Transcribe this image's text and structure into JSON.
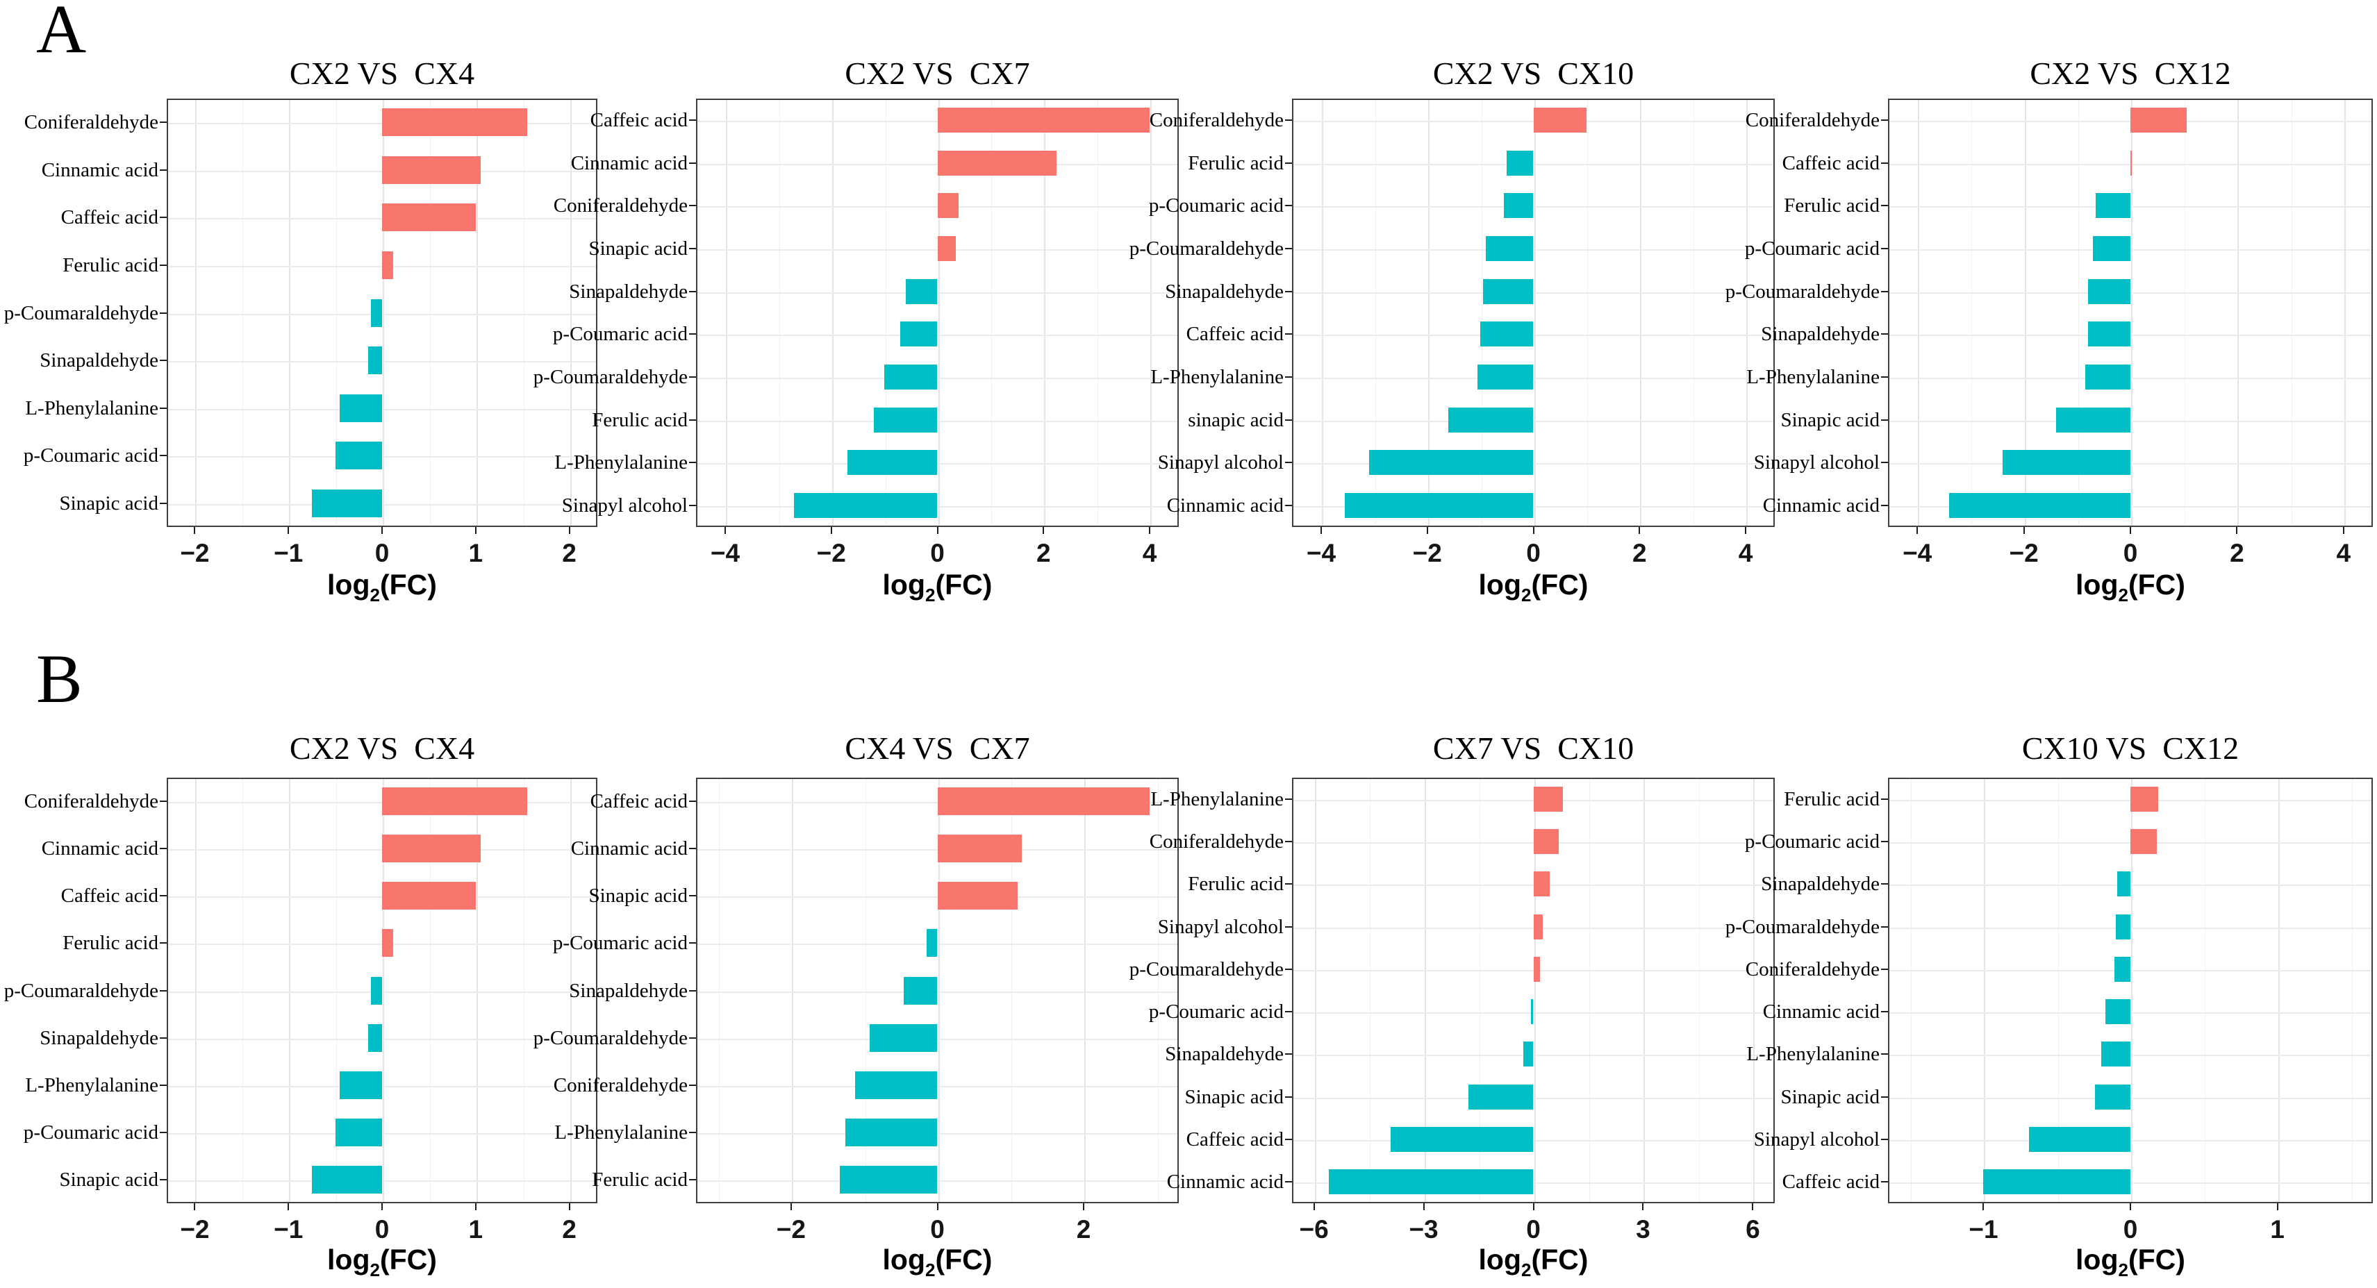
{
  "figure": {
    "xlabel": {
      "base": "log",
      "sub": "2",
      "rest": "(FC)"
    }
  },
  "colors": {
    "up": "#F8766D",
    "down": "#00BFC4"
  },
  "sections": [
    {
      "label": "A",
      "chart_indices": [
        0,
        1,
        2,
        3
      ]
    },
    {
      "label": "B",
      "chart_indices": [
        4,
        5,
        6,
        7
      ]
    }
  ],
  "chart_data": [
    {
      "type": "bar",
      "title": "CX2 VS  CX4",
      "xlabel": "log2(FC)",
      "xlim": [
        -2.3,
        2.3
      ],
      "ticks": [
        -2,
        -1,
        0,
        1,
        2
      ],
      "tick_labels": [
        "−2",
        "−1",
        "0",
        "1",
        "2"
      ],
      "grid": true,
      "bars": [
        {
          "label": "Coniferaldehyde",
          "value": 1.55
        },
        {
          "label": "Cinnamic acid",
          "value": 1.05
        },
        {
          "label": "Caffeic acid",
          "value": 1.0
        },
        {
          "label": "Ferulic acid",
          "value": 0.12
        },
        {
          "label": "p-Coumaraldehyde",
          "value": -0.12
        },
        {
          "label": "Sinapaldehyde",
          "value": -0.15
        },
        {
          "label": "L-Phenylalanine",
          "value": -0.45
        },
        {
          "label": "p-Coumaric acid",
          "value": -0.5
        },
        {
          "label": "Sinapic acid",
          "value": -0.75
        }
      ]
    },
    {
      "type": "bar",
      "title": "CX2 VS  CX7",
      "xlabel": "log2(FC)",
      "xlim": [
        -4.55,
        4.55
      ],
      "ticks": [
        -4,
        -2,
        0,
        2,
        4
      ],
      "tick_labels": [
        "−4",
        "−2",
        "0",
        "2",
        "4"
      ],
      "grid": true,
      "bars": [
        {
          "label": "Caffeic acid",
          "value": 4.0
        },
        {
          "label": "Cinnamic acid",
          "value": 2.25
        },
        {
          "label": "Coniferaldehyde",
          "value": 0.4
        },
        {
          "label": "Sinapic acid",
          "value": 0.35
        },
        {
          "label": "Sinapaldehyde",
          "value": -0.6
        },
        {
          "label": "p-Coumaric acid",
          "value": -0.7
        },
        {
          "label": "p-Coumaraldehyde",
          "value": -1.0
        },
        {
          "label": "Ferulic acid",
          "value": -1.2
        },
        {
          "label": "L-Phenylalanine",
          "value": -1.7
        },
        {
          "label": "Sinapyl alcohol",
          "value": -2.7
        }
      ]
    },
    {
      "type": "bar",
      "title": "CX2 VS  CX10",
      "xlabel": "log2(FC)",
      "xlim": [
        -4.55,
        4.55
      ],
      "ticks": [
        -4,
        -2,
        0,
        2,
        4
      ],
      "tick_labels": [
        "−4",
        "−2",
        "0",
        "2",
        "4"
      ],
      "grid": true,
      "bars": [
        {
          "label": "Coniferaldehyde",
          "value": 1.0
        },
        {
          "label": "Ferulic acid",
          "value": -0.5
        },
        {
          "label": "p-Coumaric acid",
          "value": -0.55
        },
        {
          "label": "p-Coumaraldehyde",
          "value": -0.9
        },
        {
          "label": "Sinapaldehyde",
          "value": -0.95
        },
        {
          "label": "Caffeic acid",
          "value": -1.0
        },
        {
          "label": "L-Phenylalanine",
          "value": -1.05
        },
        {
          "label": "sinapic acid",
          "value": -1.6
        },
        {
          "label": "Sinapyl alcohol",
          "value": -3.1
        },
        {
          "label": "Cinnamic acid",
          "value": -3.55
        }
      ]
    },
    {
      "type": "bar",
      "title": "CX2 VS  CX12",
      "xlabel": "log2(FC)",
      "xlim": [
        -4.55,
        4.55
      ],
      "ticks": [
        -4,
        -2,
        0,
        2,
        4
      ],
      "tick_labels": [
        "−4",
        "−2",
        "0",
        "2",
        "4"
      ],
      "grid": true,
      "bars": [
        {
          "label": "Coniferaldehyde",
          "value": 1.05
        },
        {
          "label": "Caffeic acid",
          "value": 0.03
        },
        {
          "label": "Ferulic acid",
          "value": -0.65
        },
        {
          "label": "p-Coumaric acid",
          "value": -0.7
        },
        {
          "label": "p-Coumaraldehyde",
          "value": -0.8
        },
        {
          "label": "Sinapaldehyde",
          "value": -0.8
        },
        {
          "label": "L-Phenylalanine",
          "value": -0.85
        },
        {
          "label": "Sinapic acid",
          "value": -1.4
        },
        {
          "label": "Sinapyl alcohol",
          "value": -2.4
        },
        {
          "label": "Cinnamic acid",
          "value": -3.4
        }
      ]
    },
    {
      "type": "bar",
      "title": "CX2 VS  CX4",
      "xlabel": "log2(FC)",
      "xlim": [
        -2.3,
        2.3
      ],
      "ticks": [
        -2,
        -1,
        0,
        1,
        2
      ],
      "tick_labels": [
        "−2",
        "−1",
        "0",
        "1",
        "2"
      ],
      "grid": true,
      "bars": [
        {
          "label": "Coniferaldehyde",
          "value": 1.55
        },
        {
          "label": "Cinnamic acid",
          "value": 1.05
        },
        {
          "label": "Caffeic acid",
          "value": 1.0
        },
        {
          "label": "Ferulic acid",
          "value": 0.12
        },
        {
          "label": "p-Coumaraldehyde",
          "value": -0.12
        },
        {
          "label": "Sinapaldehyde",
          "value": -0.15
        },
        {
          "label": "L-Phenylalanine",
          "value": -0.45
        },
        {
          "label": "p-Coumaric acid",
          "value": -0.5
        },
        {
          "label": "Sinapic acid",
          "value": -0.75
        }
      ]
    },
    {
      "type": "bar",
      "title": "CX4 VS  CX7",
      "xlabel": "log2(FC)",
      "xlim": [
        -3.3,
        3.3
      ],
      "ticks": [
        -2,
        0,
        2
      ],
      "tick_labels": [
        "−2",
        "0",
        "2"
      ],
      "grid": true,
      "bars": [
        {
          "label": "Caffeic acid",
          "value": 2.9
        },
        {
          "label": "Cinnamic acid",
          "value": 1.15
        },
        {
          "label": "Sinapic acid",
          "value": 1.1
        },
        {
          "label": "p-Coumaric acid",
          "value": -0.15
        },
        {
          "label": "Sinapaldehyde",
          "value": -0.46
        },
        {
          "label": "p-Coumaraldehyde",
          "value": -0.93
        },
        {
          "label": "Coniferaldehyde",
          "value": -1.13
        },
        {
          "label": "L-Phenylalanine",
          "value": -1.26
        },
        {
          "label": "Ferulic acid",
          "value": -1.33
        }
      ]
    },
    {
      "type": "bar",
      "title": "CX7 VS  CX10",
      "xlabel": "log2(FC)",
      "xlim": [
        -6.6,
        6.6
      ],
      "ticks": [
        -6,
        -3,
        0,
        3,
        6
      ],
      "tick_labels": [
        "−6",
        "−3",
        "0",
        "3",
        "6"
      ],
      "grid": true,
      "bars": [
        {
          "label": "L-Phenylalanine",
          "value": 0.8
        },
        {
          "label": "Coniferaldehyde",
          "value": 0.7
        },
        {
          "label": "Ferulic acid",
          "value": 0.45
        },
        {
          "label": "Sinapyl alcohol",
          "value": 0.25
        },
        {
          "label": "p-Coumaraldehyde",
          "value": 0.18
        },
        {
          "label": "p-Coumaric acid",
          "value": -0.06
        },
        {
          "label": "Sinapaldehyde",
          "value": -0.28
        },
        {
          "label": "Sinapic acid",
          "value": -1.78
        },
        {
          "label": "Caffeic acid",
          "value": -3.9
        },
        {
          "label": "Cinnamic acid",
          "value": -5.6
        }
      ]
    },
    {
      "type": "bar",
      "title": "CX10 VS  CX12",
      "xlabel": "log2(FC)",
      "xlim": [
        -1.65,
        1.65
      ],
      "ticks": [
        -1,
        0,
        1
      ],
      "tick_labels": [
        "−1",
        "0",
        "1"
      ],
      "grid": true,
      "bars": [
        {
          "label": "Ferulic acid",
          "value": 0.19
        },
        {
          "label": "p-Coumaric acid",
          "value": 0.18
        },
        {
          "label": "Sinapaldehyde",
          "value": -0.09
        },
        {
          "label": "p-Coumaraldehyde",
          "value": -0.1
        },
        {
          "label": "Coniferaldehyde",
          "value": -0.11
        },
        {
          "label": "Cinnamic acid",
          "value": -0.17
        },
        {
          "label": "L-Phenylalanine",
          "value": -0.2
        },
        {
          "label": "Sinapic acid",
          "value": -0.24
        },
        {
          "label": "Sinapyl alcohol",
          "value": -0.69
        },
        {
          "label": "Caffeic acid",
          "value": -1.0
        }
      ]
    }
  ]
}
